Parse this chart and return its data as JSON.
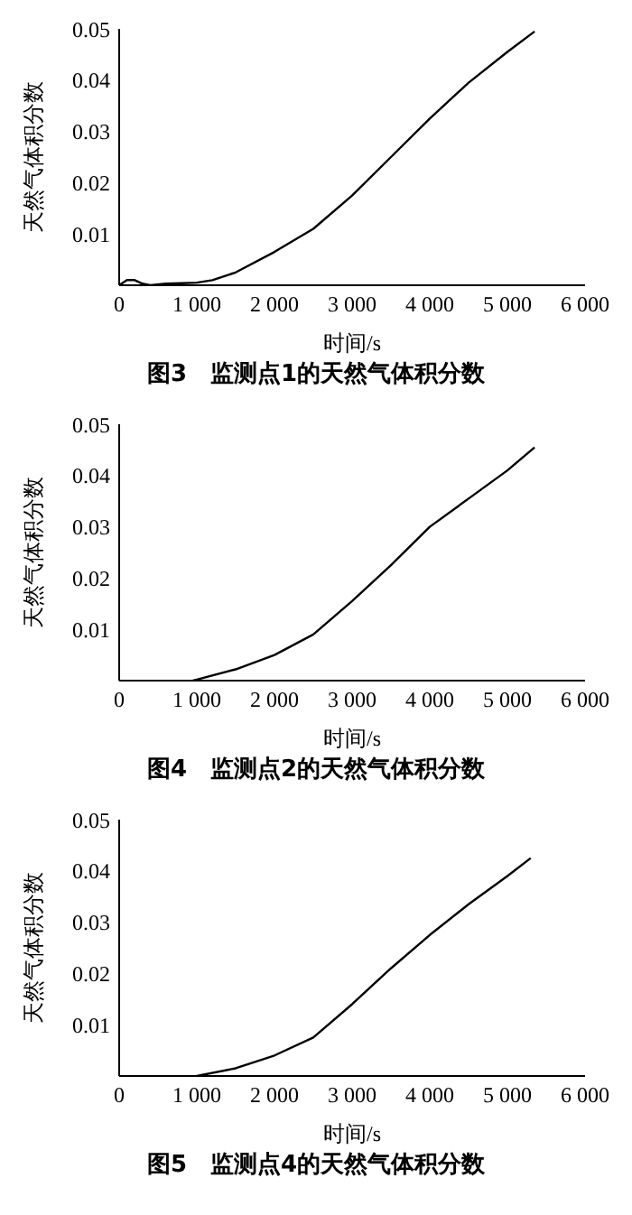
{
  "chart_data": [
    {
      "type": "line",
      "title": "图3　监测点1的天然气体积分数",
      "xlabel": "时间/s",
      "ylabel": "天然气体积分数",
      "xlim": [
        0,
        6000
      ],
      "ylim": [
        0,
        0.05
      ],
      "xticks": [
        {
          "value": 0,
          "label": "0"
        },
        {
          "value": 1000,
          "label": "1 000"
        },
        {
          "value": 2000,
          "label": "2 000"
        },
        {
          "value": 3000,
          "label": "3 000"
        },
        {
          "value": 4000,
          "label": "4 000"
        },
        {
          "value": 5000,
          "label": "5 000"
        },
        {
          "value": 6000,
          "label": "6 000"
        }
      ],
      "yticks": [
        0.01,
        0.02,
        0.03,
        0.04,
        0.05
      ],
      "grid": false,
      "legend": false,
      "marker": "none",
      "line_style": "solid",
      "series": [
        {
          "color": "#000000",
          "x": [
            0,
            100,
            200,
            300,
            400,
            600,
            800,
            1000,
            1200,
            1500,
            2000,
            2500,
            3000,
            3500,
            4000,
            4500,
            5000,
            5350
          ],
          "values": [
            0,
            0.001,
            0.001,
            0.0003,
            0,
            0.0003,
            0.0004,
            0.0005,
            0.001,
            0.0025,
            0.0065,
            0.011,
            0.0175,
            0.025,
            0.0325,
            0.0395,
            0.0455,
            0.0495
          ]
        }
      ]
    },
    {
      "type": "line",
      "title": "图4　监测点2的天然气体积分数",
      "xlabel": "时间/s",
      "ylabel": "天然气体积分数",
      "xlim": [
        0,
        6000
      ],
      "ylim": [
        0,
        0.05
      ],
      "xticks": [
        {
          "value": 0,
          "label": "0"
        },
        {
          "value": 1000,
          "label": "1 000"
        },
        {
          "value": 2000,
          "label": "2 000"
        },
        {
          "value": 3000,
          "label": "3 000"
        },
        {
          "value": 4000,
          "label": "4 000"
        },
        {
          "value": 5000,
          "label": "5 000"
        },
        {
          "value": 6000,
          "label": "6 000"
        }
      ],
      "yticks": [
        0.01,
        0.02,
        0.03,
        0.04,
        0.05
      ],
      "grid": false,
      "legend": false,
      "marker": "none",
      "line_style": "solid",
      "series": [
        {
          "color": "#000000",
          "x": [
            950,
            1000,
            1500,
            2000,
            2500,
            3000,
            3500,
            4000,
            4500,
            5000,
            5350
          ],
          "values": [
            0,
            0.0002,
            0.0022,
            0.005,
            0.009,
            0.0155,
            0.0225,
            0.03,
            0.0355,
            0.041,
            0.0455
          ]
        }
      ]
    },
    {
      "type": "line",
      "title": "图5　监测点4的天然气体积分数",
      "xlabel": "时间/s",
      "ylabel": "天然气体积分数",
      "xlim": [
        0,
        6000
      ],
      "ylim": [
        0,
        0.05
      ],
      "xticks": [
        {
          "value": 0,
          "label": "0"
        },
        {
          "value": 1000,
          "label": "1 000"
        },
        {
          "value": 2000,
          "label": "2 000"
        },
        {
          "value": 3000,
          "label": "3 000"
        },
        {
          "value": 4000,
          "label": "4 000"
        },
        {
          "value": 5000,
          "label": "5 000"
        },
        {
          "value": 6000,
          "label": "6 000"
        }
      ],
      "yticks": [
        0.01,
        0.02,
        0.03,
        0.04,
        0.05
      ],
      "grid": false,
      "legend": false,
      "marker": "none",
      "line_style": "solid",
      "series": [
        {
          "color": "#000000",
          "x": [
            1000,
            1500,
            2000,
            2500,
            3000,
            3500,
            4000,
            4500,
            5000,
            5300
          ],
          "values": [
            0,
            0.0015,
            0.004,
            0.0075,
            0.014,
            0.021,
            0.0275,
            0.0335,
            0.039,
            0.0425
          ]
        }
      ]
    }
  ]
}
